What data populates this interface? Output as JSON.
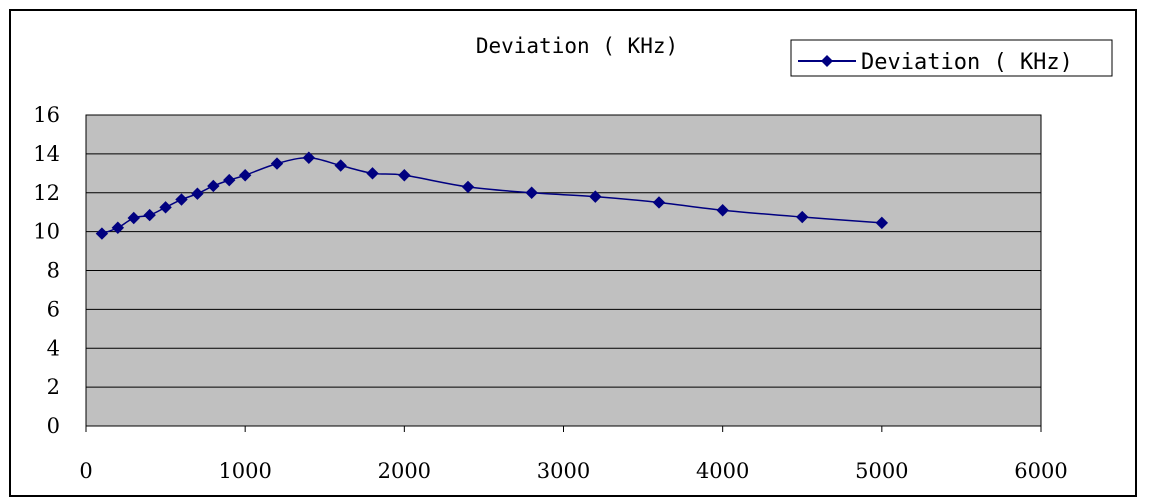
{
  "chart_data": {
    "type": "line",
    "title": "Deviation ( KHz)",
    "xlabel": "",
    "ylabel": "",
    "xlim": [
      0,
      6000
    ],
    "ylim": [
      0,
      16
    ],
    "xticks": [
      0,
      1000,
      2000,
      3000,
      4000,
      5000,
      6000
    ],
    "yticks": [
      0,
      2,
      4,
      6,
      8,
      10,
      12,
      14,
      16
    ],
    "grid": "horizontal",
    "legend_position": "top-right",
    "series": [
      {
        "name": "Deviation ( KHz)",
        "color": "#000080",
        "marker": "diamond",
        "x": [
          100,
          200,
          300,
          400,
          500,
          600,
          700,
          800,
          900,
          1000,
          1200,
          1400,
          1600,
          1800,
          2000,
          2400,
          2800,
          3200,
          3600,
          4000,
          4500,
          5000
        ],
        "y": [
          9.9,
          10.2,
          10.7,
          10.85,
          11.25,
          11.65,
          11.95,
          12.35,
          12.65,
          12.9,
          13.5,
          13.8,
          13.4,
          13.0,
          12.9,
          12.3,
          12.0,
          11.8,
          11.5,
          11.1,
          10.75,
          10.45
        ]
      }
    ]
  },
  "colors": {
    "plot_background": "#c0c0c0",
    "gridline": "#000000",
    "series_line": "#000080"
  }
}
